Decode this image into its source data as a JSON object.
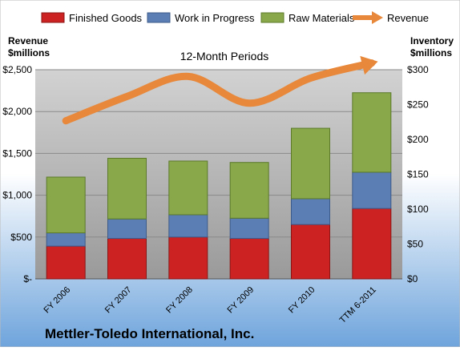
{
  "chart_data": {
    "type": "bar",
    "subtype": "stacked-bar-with-line",
    "title": "12-Month Periods",
    "company": "Mettler-Toledo International, Inc.",
    "left_axis_label": [
      "Revenue",
      "$millions"
    ],
    "right_axis_label": [
      "Inventory",
      "$millions"
    ],
    "categories": [
      "FY 2006",
      "FY 2007",
      "FY 2008",
      "FY 2009",
      "FY 2010",
      "TTM 6-2011"
    ],
    "left_ticks": [
      "$-",
      "$500",
      "$1,000",
      "$1,500",
      "$2,000",
      "$2,500"
    ],
    "right_ticks": [
      "$0",
      "$50",
      "$100",
      "$150",
      "$200",
      "$250",
      "$300"
    ],
    "left_ylim": [
      0,
      2500
    ],
    "right_ylim": [
      0,
      300
    ],
    "legend_position": "top",
    "series": [
      {
        "name": "Finished Goods",
        "axis": "right",
        "kind": "bar",
        "color": "#cc2222",
        "values": [
          47,
          58,
          60,
          58,
          78,
          101
        ]
      },
      {
        "name": "Work in Progress",
        "axis": "right",
        "kind": "bar",
        "color": "#5b7fb5",
        "values": [
          19,
          28,
          32,
          29,
          37,
          52
        ]
      },
      {
        "name": "Raw Materials",
        "axis": "right",
        "kind": "bar",
        "color": "#88a84a",
        "values": [
          80,
          87,
          77,
          80,
          101,
          114
        ]
      },
      {
        "name": "Revenue",
        "axis": "left",
        "kind": "line",
        "color": "#e8883a",
        "values": [
          1890,
          2180,
          2420,
          2100,
          2400,
          2580
        ]
      }
    ]
  }
}
